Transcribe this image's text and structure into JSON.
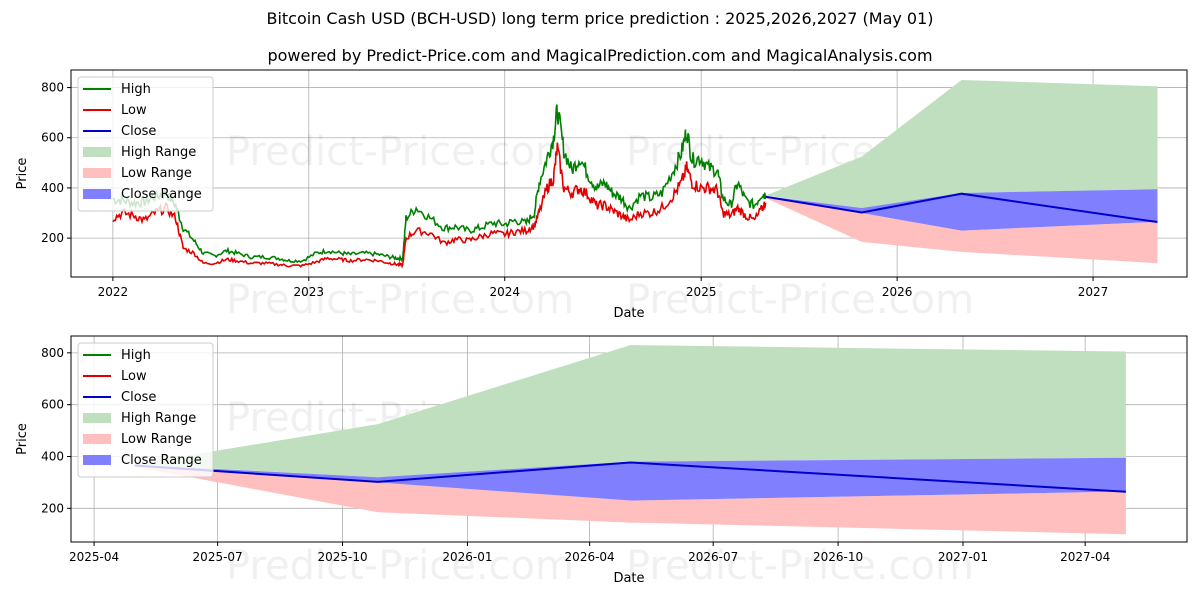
{
  "title": "Bitcoin Cash USD (BCH-USD) long term price prediction : 2025,2026,2027 (May 01)",
  "subtitle": "powered by Predict-Price.com and MagicalPrediction.com and MagicalAnalysis.com",
  "watermark": "Predict-Price.com",
  "colors": {
    "high": "#008000",
    "low": "#e00000",
    "close": "#0000cc",
    "high_range": "#bfdfbf",
    "low_range": "#ffbfbf",
    "close_range": "#8080ff",
    "grid": "#b0b0b0"
  },
  "chart_data": [
    {
      "type": "line",
      "xlabel": "Date",
      "ylabel": "Price",
      "x_range": [
        "2021-10-15",
        "2027-06-25"
      ],
      "ylim": [
        45,
        870
      ],
      "x_ticks": [
        {
          "date": "2022-01-01",
          "label": "2022"
        },
        {
          "date": "2023-01-01",
          "label": "2023"
        },
        {
          "date": "2024-01-01",
          "label": "2024"
        },
        {
          "date": "2025-01-01",
          "label": "2025"
        },
        {
          "date": "2026-01-01",
          "label": "2026"
        },
        {
          "date": "2027-01-01",
          "label": "2027"
        }
      ],
      "y_ticks": [
        200,
        400,
        600,
        800
      ],
      "grid": true,
      "legend_position": "top-left",
      "legend": [
        "High",
        "Low",
        "Close",
        "High Range",
        "Low Range",
        "Close Range"
      ],
      "history": {
        "dates": [
          "2022-01-01",
          "2022-01-20",
          "2022-02-10",
          "2022-03-01",
          "2022-03-20",
          "2022-04-10",
          "2022-04-28",
          "2022-05-12",
          "2022-06-01",
          "2022-06-18",
          "2022-07-10",
          "2022-08-01",
          "2022-08-20",
          "2022-09-15",
          "2022-10-10",
          "2022-11-05",
          "2022-11-25",
          "2022-12-20",
          "2023-01-15",
          "2023-02-05",
          "2023-03-01",
          "2023-03-20",
          "2023-04-15",
          "2023-05-10",
          "2023-06-01",
          "2023-06-15",
          "2023-06-25",
          "2023-07-01",
          "2023-07-20",
          "2023-08-15",
          "2023-09-10",
          "2023-10-01",
          "2023-10-25",
          "2023-11-15",
          "2023-12-10",
          "2024-01-01",
          "2024-01-20",
          "2024-02-10",
          "2024-02-25",
          "2024-03-05",
          "2024-03-20",
          "2024-04-01",
          "2024-04-08",
          "2024-04-20",
          "2024-05-05",
          "2024-05-20",
          "2024-06-05",
          "2024-06-20",
          "2024-07-05",
          "2024-07-20",
          "2024-08-05",
          "2024-08-20",
          "2024-09-10",
          "2024-09-30",
          "2024-10-20",
          "2024-11-10",
          "2024-11-25",
          "2024-12-05",
          "2024-12-15",
          "2024-12-31",
          "2025-01-15",
          "2025-01-31",
          "2025-02-10",
          "2025-02-25",
          "2025-03-10",
          "2025-03-25",
          "2025-04-10",
          "2025-04-25",
          "2025-05-01"
        ],
        "high": [
          355,
          350,
          340,
          345,
          365,
          380,
          330,
          240,
          190,
          140,
          130,
          150,
          140,
          125,
          125,
          120,
          110,
          110,
          140,
          150,
          140,
          135,
          140,
          135,
          125,
          120,
          118,
          280,
          320,
          280,
          240,
          245,
          230,
          240,
          260,
          255,
          270,
          260,
          300,
          420,
          520,
          600,
          715,
          550,
          470,
          520,
          450,
          400,
          420,
          380,
          360,
          320,
          370,
          360,
          380,
          470,
          540,
          630,
          510,
          520,
          480,
          470,
          360,
          330,
          420,
          350,
          330,
          380,
          370
        ],
        "low": [
          280,
          300,
          290,
          270,
          300,
          320,
          280,
          160,
          140,
          100,
          100,
          115,
          110,
          100,
          100,
          95,
          90,
          90,
          105,
          120,
          115,
          110,
          115,
          110,
          100,
          95,
          92,
          200,
          230,
          220,
          180,
          195,
          190,
          205,
          220,
          215,
          225,
          230,
          250,
          300,
          400,
          440,
          560,
          400,
          380,
          400,
          370,
          330,
          330,
          310,
          290,
          270,
          300,
          300,
          320,
          370,
          420,
          480,
          420,
          400,
          400,
          390,
          300,
          290,
          320,
          290,
          270,
          320,
          340
        ]
      },
      "forecast": {
        "dates": [
          "2025-05-01",
          "2025-10-27",
          "2026-05-01",
          "2027-05-01"
        ],
        "high_range_top": [
          370,
          525,
          830,
          805
        ],
        "high_range_bottom": [
          370,
          320,
          380,
          395
        ],
        "low_range_top": [
          365,
          300,
          230,
          265
        ],
        "low_range_bottom": [
          360,
          185,
          145,
          100
        ],
        "close_range_top": [
          368,
          320,
          380,
          395
        ],
        "close_range_bottom": [
          365,
          300,
          230,
          265
        ],
        "close": [
          365,
          302,
          377,
          264
        ]
      }
    },
    {
      "type": "line",
      "xlabel": "Date",
      "ylabel": "Price",
      "x_range": [
        "2025-03-15",
        "2027-06-15"
      ],
      "ylim": [
        70,
        865
      ],
      "x_ticks": [
        {
          "date": "2025-04-01",
          "label": "2025-04"
        },
        {
          "date": "2025-07-01",
          "label": "2025-07"
        },
        {
          "date": "2025-10-01",
          "label": "2025-10"
        },
        {
          "date": "2026-01-01",
          "label": "2026-01"
        },
        {
          "date": "2026-04-01",
          "label": "2026-04"
        },
        {
          "date": "2026-07-01",
          "label": "2026-07"
        },
        {
          "date": "2026-10-01",
          "label": "2026-10"
        },
        {
          "date": "2027-01-01",
          "label": "2027-01"
        },
        {
          "date": "2027-04-01",
          "label": "2027-04"
        }
      ],
      "y_ticks": [
        200,
        400,
        600,
        800
      ],
      "grid": true,
      "legend_position": "top-left",
      "legend": [
        "High",
        "Low",
        "Close",
        "High Range",
        "Low Range",
        "Close Range"
      ],
      "forecast": {
        "dates": [
          "2025-05-01",
          "2025-10-27",
          "2026-05-01",
          "2027-05-01"
        ],
        "high_range_top": [
          370,
          525,
          830,
          805
        ],
        "high_range_bottom": [
          370,
          320,
          380,
          395
        ],
        "low_range_top": [
          365,
          300,
          230,
          265
        ],
        "low_range_bottom": [
          360,
          185,
          145,
          100
        ],
        "close_range_top": [
          368,
          320,
          380,
          395
        ],
        "close_range_bottom": [
          365,
          300,
          230,
          265
        ],
        "close": [
          365,
          302,
          377,
          264
        ]
      }
    }
  ]
}
